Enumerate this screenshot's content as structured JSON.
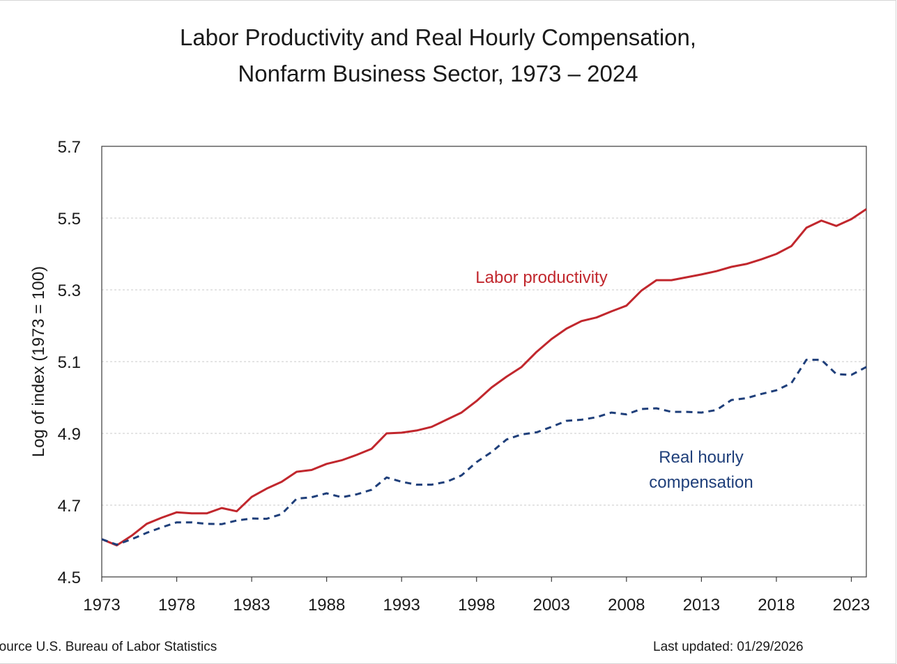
{
  "title_line1": "Labor Productivity and Real Hourly Compensation,",
  "title_line2": "Nonfarm Business Sector, 1973 – 2024",
  "footer": {
    "source": "Source U.S. Bureau of Labor Statistics",
    "last_updated": "Last updated: 01/29/2026"
  },
  "colors": {
    "productivity": "#c1272d",
    "compensation": "#1f3f7a",
    "grid": "#c8c8c8",
    "axis": "#3a3a3a",
    "text": "#1a1a1a"
  },
  "chart_data": {
    "type": "line",
    "title": "Labor Productivity and Real Hourly Compensation, Nonfarm Business Sector, 1973 – 2024",
    "xlabel": "",
    "ylabel": "Log of index (1973 = 100)",
    "xlim": [
      1973,
      2024
    ],
    "ylim": [
      4.5,
      5.7
    ],
    "xticks": [
      "1973",
      "1978",
      "1983",
      "1988",
      "1993",
      "1998",
      "2003",
      "2008",
      "2013",
      "2018",
      "2023"
    ],
    "yticks": [
      "4.5",
      "4.7",
      "4.9",
      "5.1",
      "5.3",
      "5.5",
      "5.7"
    ],
    "grid": true,
    "x": [
      1973,
      1974,
      1975,
      1976,
      1977,
      1978,
      1979,
      1980,
      1981,
      1982,
      1983,
      1984,
      1985,
      1986,
      1987,
      1988,
      1989,
      1990,
      1991,
      1992,
      1993,
      1994,
      1995,
      1996,
      1997,
      1998,
      1999,
      2000,
      2001,
      2002,
      2003,
      2004,
      2005,
      2006,
      2007,
      2008,
      2009,
      2010,
      2011,
      2012,
      2013,
      2014,
      2015,
      2016,
      2017,
      2018,
      2019,
      2020,
      2021,
      2022,
      2023,
      2024
    ],
    "series": [
      {
        "name": "Labor productivity",
        "label_lines": [
          "Labor productivity"
        ],
        "style": "solid",
        "values": [
          4.605,
          4.588,
          4.615,
          4.648,
          4.665,
          4.68,
          4.677,
          4.677,
          4.692,
          4.683,
          4.723,
          4.746,
          4.765,
          4.793,
          4.798,
          4.815,
          4.825,
          4.84,
          4.857,
          4.9,
          4.902,
          4.908,
          4.918,
          4.938,
          4.958,
          4.99,
          5.028,
          5.058,
          5.085,
          5.127,
          5.163,
          5.192,
          5.213,
          5.223,
          5.24,
          5.256,
          5.298,
          5.327,
          5.327,
          5.335,
          5.343,
          5.352,
          5.364,
          5.372,
          5.385,
          5.4,
          5.422,
          5.473,
          5.493,
          5.478,
          5.497,
          5.525
        ]
      },
      {
        "name": "Real hourly compensation",
        "label_lines": [
          "Real hourly",
          "compensation"
        ],
        "style": "dashed",
        "values": [
          4.605,
          4.59,
          4.605,
          4.623,
          4.638,
          4.652,
          4.652,
          4.648,
          4.647,
          4.657,
          4.663,
          4.662,
          4.675,
          4.718,
          4.722,
          4.733,
          4.722,
          4.73,
          4.743,
          4.777,
          4.765,
          4.757,
          4.757,
          4.765,
          4.783,
          4.82,
          4.848,
          4.883,
          4.897,
          4.903,
          4.918,
          4.935,
          4.938,
          4.945,
          4.958,
          4.953,
          4.968,
          4.97,
          4.96,
          4.96,
          4.958,
          4.965,
          4.993,
          4.998,
          5.01,
          5.02,
          5.04,
          5.105,
          5.105,
          5.065,
          5.063,
          5.085
        ]
      }
    ]
  }
}
